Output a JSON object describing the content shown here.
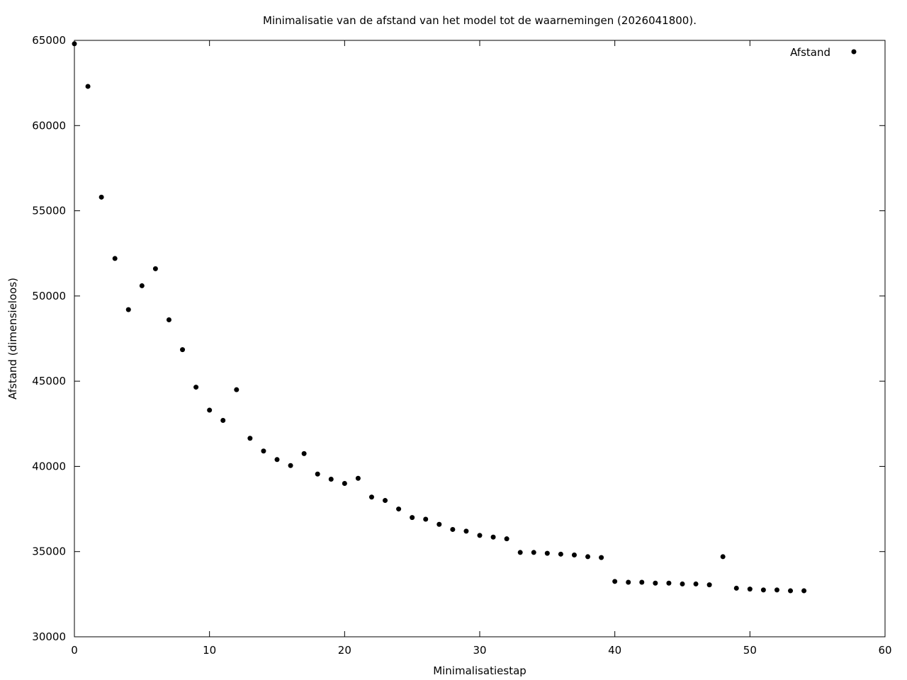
{
  "chart_data": {
    "type": "scatter",
    "title": "Minimalisatie van de afstand van het model tot de waarnemingen (2026041800).",
    "xlabel": "Minimalisatiestap",
    "ylabel": "Afstand (dimensieloos)",
    "xlim": [
      0,
      60
    ],
    "ylim": [
      30000,
      65000
    ],
    "xticks": [
      0,
      10,
      20,
      30,
      40,
      50,
      60
    ],
    "yticks": [
      30000,
      35000,
      40000,
      45000,
      50000,
      55000,
      60000,
      65000
    ],
    "grid": false,
    "legend_position": "top-right",
    "marker_color": "#000000",
    "series": [
      {
        "name": "Afstand",
        "x": [
          0,
          1,
          2,
          3,
          4,
          5,
          6,
          7,
          8,
          9,
          10,
          11,
          12,
          13,
          14,
          15,
          16,
          17,
          18,
          19,
          20,
          21,
          22,
          23,
          24,
          25,
          26,
          27,
          28,
          29,
          30,
          31,
          32,
          33,
          34,
          35,
          36,
          37,
          38,
          39,
          40,
          41,
          42,
          43,
          44,
          45,
          46,
          47,
          48,
          49,
          50,
          51,
          52,
          53,
          54
        ],
        "y": [
          64800,
          62300,
          55800,
          52200,
          49200,
          50600,
          51600,
          48600,
          46850,
          44650,
          43300,
          42700,
          44500,
          41650,
          40900,
          40400,
          40050,
          40750,
          39550,
          39250,
          39000,
          39300,
          38200,
          38000,
          37500,
          37000,
          36900,
          36600,
          36300,
          36200,
          35950,
          35850,
          35750,
          34950,
          34950,
          34900,
          34850,
          34800,
          34700,
          34650,
          33250,
          33200,
          33200,
          33150,
          33150,
          33100,
          33100,
          33050,
          34700,
          32850,
          32800,
          32750,
          32750,
          32700,
          32700
        ]
      }
    ]
  }
}
